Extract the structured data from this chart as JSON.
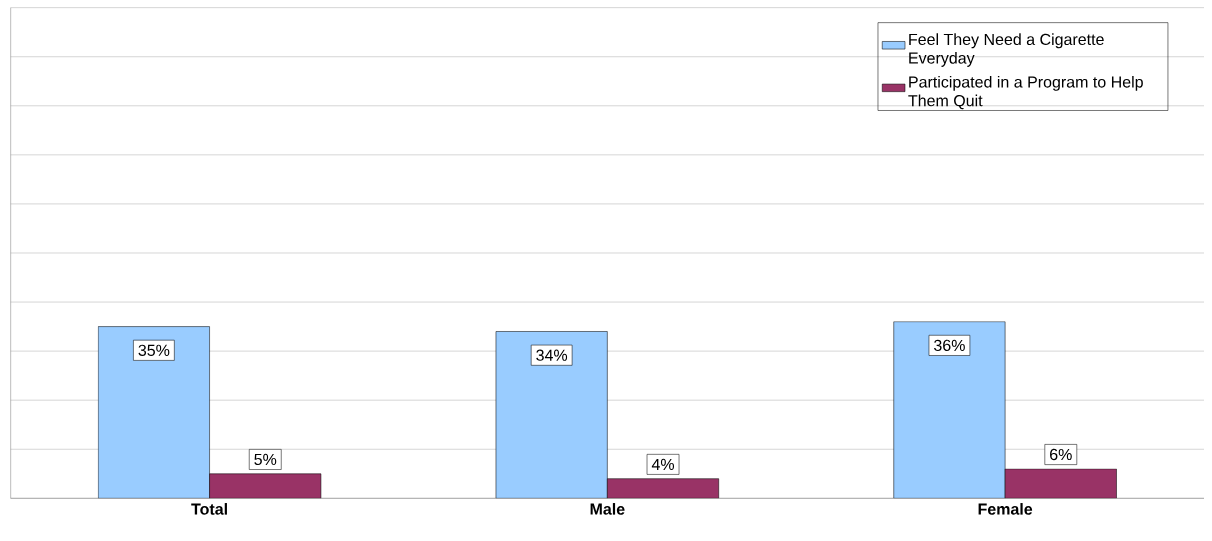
{
  "chart_data": {
    "type": "bar",
    "categories": [
      "Total",
      "Male",
      "Female"
    ],
    "series": [
      {
        "name": "Feel They Need a Cigarette Everyday",
        "color": "#99ccff",
        "values": [
          35,
          34,
          36
        ],
        "value_labels": [
          "35%",
          "34%",
          "36%"
        ]
      },
      {
        "name": "Participated in a Program to Help Them Quit",
        "color": "#993366",
        "values": [
          5,
          4,
          6
        ],
        "value_labels": [
          "5%",
          "4%",
          "6%"
        ]
      }
    ],
    "ylim": [
      0,
      100
    ],
    "yticks": [
      {
        "value": 0,
        "label": null
      },
      {
        "value": 10,
        "label": null
      },
      {
        "value": 20,
        "label": null
      },
      {
        "value": 30,
        "label": null
      },
      {
        "value": 40,
        "label": null
      },
      {
        "value": 50,
        "label": null
      },
      {
        "value": 60,
        "label": null
      },
      {
        "value": 70,
        "label": null
      },
      {
        "value": 80,
        "label": null
      },
      {
        "value": 90,
        "label": null
      },
      {
        "value": 100,
        "label": null
      }
    ],
    "tick_labels": "x",
    "grid": "y",
    "legend": "top right"
  }
}
